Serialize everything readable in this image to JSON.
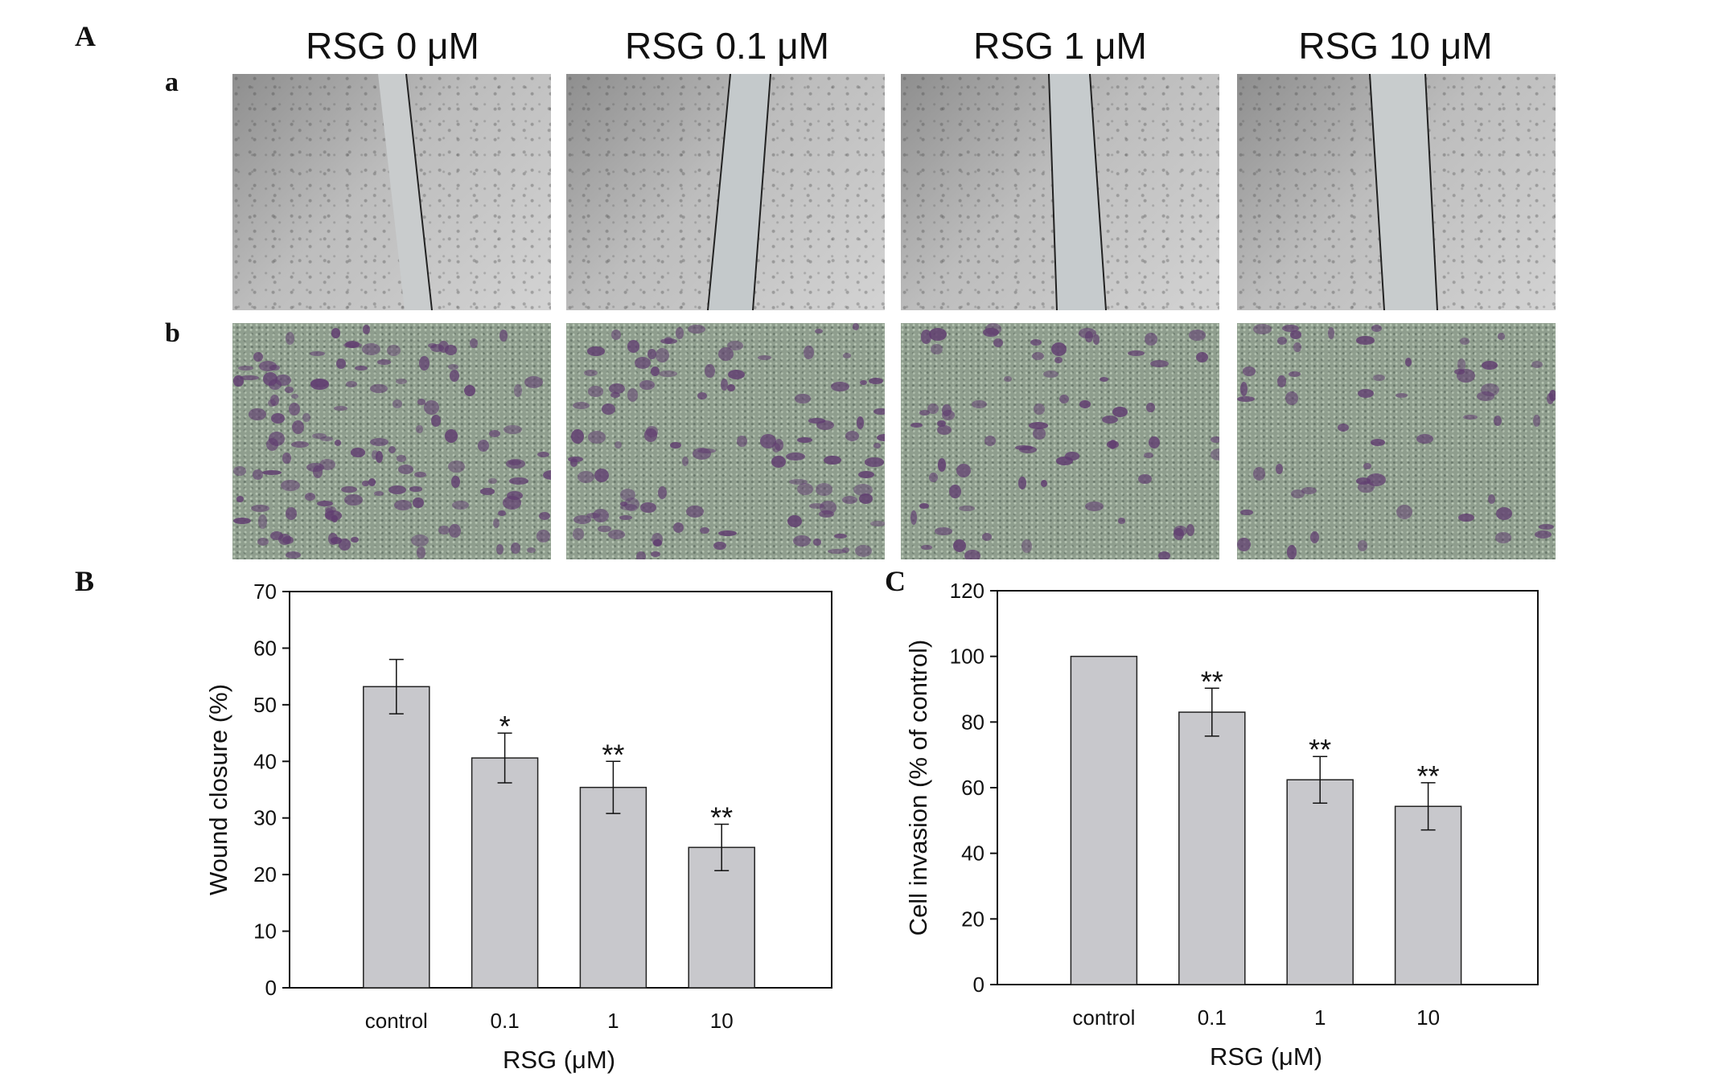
{
  "panels": {
    "A": "A",
    "B": "B",
    "C": "C",
    "row_a": "a",
    "row_b": "b"
  },
  "micrograph_titles": [
    "RSG 0 μM",
    "RSG 0.1 μM",
    "RSG 1 μM",
    "RSG 10 μM"
  ],
  "colors": {
    "bar_fill": "#c8c8cc",
    "bar_stroke": "#222222",
    "stain_purple": "#603c70"
  },
  "chart_data": [
    {
      "type": "bar",
      "title": "",
      "categories": [
        "control",
        "0.1",
        "1",
        "10"
      ],
      "values": [
        53.2,
        40.6,
        35.4,
        24.8
      ],
      "errors": [
        4.8,
        4.4,
        4.6,
        4.1
      ],
      "significance": [
        "",
        "*",
        "**",
        "**"
      ],
      "xlabel": "RSG (μM)",
      "ylabel": "Wound closure (%)",
      "ylim": [
        0,
        70
      ],
      "yticks": [
        0,
        10,
        20,
        30,
        40,
        50,
        60,
        70
      ],
      "grid": false
    },
    {
      "type": "bar",
      "title": "",
      "categories": [
        "control",
        "0.1",
        "1",
        "10"
      ],
      "values": [
        100,
        83,
        62.4,
        54.3
      ],
      "errors": [
        0,
        7.3,
        7.1,
        7.2
      ],
      "significance": [
        "",
        "**",
        "**",
        "**"
      ],
      "xlabel": "RSG (μM)",
      "ylabel": "Cell invasion (% of control)",
      "ylim": [
        0,
        120
      ],
      "yticks": [
        0,
        20,
        40,
        60,
        80,
        100,
        120
      ],
      "grid": false
    }
  ]
}
